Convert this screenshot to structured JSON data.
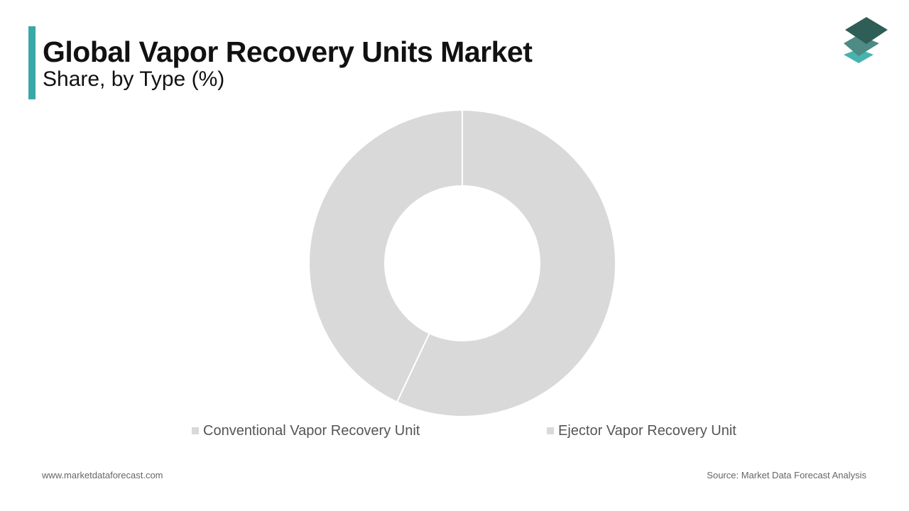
{
  "header": {
    "title": "Global Vapor Recovery Units Market",
    "subtitle": "Share, by Type (%)"
  },
  "colors": {
    "accent": "#3aa8a8",
    "slice": "#d9d9d9",
    "logo_top": "#2e5e55",
    "logo_mid": "#4d8b84",
    "logo_bottom": "#46b3b0"
  },
  "chart_data": {
    "type": "pie",
    "donut": true,
    "categories": [
      "Conventional Vapor Recovery Unit",
      "Ejector Vapor Recovery Unit"
    ],
    "values": [
      57,
      43
    ],
    "legend_position": "bottom"
  },
  "footer": {
    "website": "www.marketdataforecast.com",
    "source": "Source: Market Data Forecast Analysis"
  }
}
